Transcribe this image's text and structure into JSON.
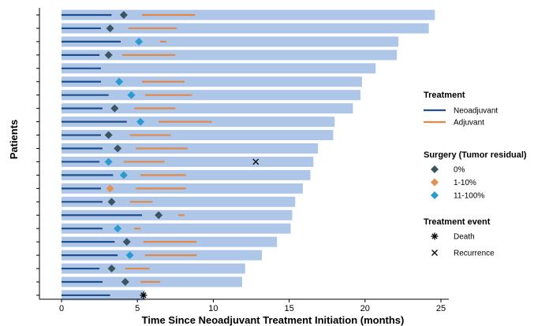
{
  "chart_data": {
    "type": "swimmer",
    "xlabel": "Time Since Neoadjuvant Treatment Initiation (months)",
    "ylabel": "Patients",
    "xlim": [
      -1.5,
      25.5
    ],
    "xticks": [
      0,
      5,
      10,
      15,
      20,
      25
    ],
    "colors": {
      "bar": "#aec7e8",
      "neoadjuvant": "#1f4e8c",
      "adjuvant": "#e0894a",
      "surgery_0": "#3b5560",
      "surgery_1_10": "#e0934f",
      "surgery_11_100": "#2a9ad0"
    },
    "patients": [
      {
        "duration": 24.6,
        "neo": [
          0,
          3.3
        ],
        "adj": [
          5.3,
          8.8
        ],
        "surgery": 4.1,
        "residual": "0%",
        "event": null,
        "event_time": null
      },
      {
        "duration": 24.2,
        "neo": [
          0,
          2.6
        ],
        "adj": [
          4.4,
          7.6
        ],
        "surgery": 3.2,
        "residual": "0%",
        "event": null,
        "event_time": null
      },
      {
        "duration": 22.2,
        "neo": [
          0,
          3.9
        ],
        "adj": [
          6.5,
          6.9
        ],
        "surgery": 5.1,
        "residual": "11-100%",
        "event": null,
        "event_time": null
      },
      {
        "duration": 22.1,
        "neo": [
          0,
          2.5
        ],
        "adj": [
          4.0,
          7.5
        ],
        "surgery": 3.1,
        "residual": "0%",
        "event": null,
        "event_time": null
      },
      {
        "duration": 20.7,
        "neo": [
          0,
          2.6
        ],
        "adj": null,
        "surgery": null,
        "residual": null,
        "event": null,
        "event_time": null
      },
      {
        "duration": 19.8,
        "neo": [
          0,
          2.6
        ],
        "adj": [
          5.3,
          8.1
        ],
        "surgery": 3.8,
        "residual": "11-100%",
        "event": null,
        "event_time": null
      },
      {
        "duration": 19.7,
        "neo": [
          0,
          3.1
        ],
        "adj": [
          5.5,
          8.6
        ],
        "surgery": 4.6,
        "residual": "11-100%",
        "event": null,
        "event_time": null
      },
      {
        "duration": 19.2,
        "neo": [
          0,
          2.7
        ],
        "adj": [
          4.8,
          7.5
        ],
        "surgery": 3.5,
        "residual": "0%",
        "event": null,
        "event_time": null
      },
      {
        "duration": 18.0,
        "neo": [
          0,
          4.3
        ],
        "adj": [
          6.4,
          9.9
        ],
        "surgery": 5.2,
        "residual": "11-100%",
        "event": null,
        "event_time": null
      },
      {
        "duration": 17.9,
        "neo": [
          0,
          2.6
        ],
        "adj": [
          4.5,
          7.2
        ],
        "surgery": 3.1,
        "residual": "0%",
        "event": null,
        "event_time": null
      },
      {
        "duration": 16.9,
        "neo": [
          0,
          2.7
        ],
        "adj": [
          4.9,
          8.3
        ],
        "surgery": 3.7,
        "residual": "0%",
        "event": null,
        "event_time": null
      },
      {
        "duration": 16.6,
        "neo": [
          0,
          2.5
        ],
        "adj": [
          4.1,
          6.8
        ],
        "surgery": 3.1,
        "residual": "11-100%",
        "event": "Recurrence",
        "event_time": 12.8
      },
      {
        "duration": 16.4,
        "neo": [
          0,
          3.4
        ],
        "adj": [
          5.2,
          8.2
        ],
        "surgery": 4.1,
        "residual": "11-100%",
        "event": null,
        "event_time": null
      },
      {
        "duration": 15.9,
        "neo": [
          0,
          2.6
        ],
        "adj": [
          4.9,
          8.2
        ],
        "surgery": 3.2,
        "residual": "1-10%",
        "event": null,
        "event_time": null
      },
      {
        "duration": 15.4,
        "neo": [
          0,
          2.7
        ],
        "adj": [
          4.5,
          6.0
        ],
        "surgery": 3.3,
        "residual": "0%",
        "event": null,
        "event_time": null
      },
      {
        "duration": 15.2,
        "neo": [
          0,
          5.3
        ],
        "adj": [
          7.7,
          8.1
        ],
        "surgery": 6.4,
        "residual": "0%",
        "event": null,
        "event_time": null
      },
      {
        "duration": 15.1,
        "neo": [
          0,
          2.7
        ],
        "adj": [
          4.8,
          5.2
        ],
        "surgery": 3.7,
        "residual": "11-100%",
        "event": null,
        "event_time": null
      },
      {
        "duration": 14.2,
        "neo": [
          0,
          3.5
        ],
        "adj": [
          5.4,
          8.9
        ],
        "surgery": 4.3,
        "residual": "0%",
        "event": null,
        "event_time": null
      },
      {
        "duration": 13.2,
        "neo": [
          0,
          3.7
        ],
        "adj": [
          5.5,
          8.9
        ],
        "surgery": 4.5,
        "residual": "11-100%",
        "event": null,
        "event_time": null
      },
      {
        "duration": 12.1,
        "neo": [
          0,
          2.5
        ],
        "adj": [
          4.2,
          5.8
        ],
        "surgery": 3.3,
        "residual": "0%",
        "event": null,
        "event_time": null
      },
      {
        "duration": 11.9,
        "neo": [
          0,
          2.7
        ],
        "adj": [
          5.2,
          6.5
        ],
        "surgery": 4.2,
        "residual": "0%",
        "event": null,
        "event_time": null
      },
      {
        "duration": 5.5,
        "neo": [
          0,
          3.2
        ],
        "adj": null,
        "surgery": null,
        "residual": null,
        "event": "Death",
        "event_time": 5.4
      }
    ],
    "legend": {
      "treatment": {
        "title": "Treatment",
        "items": [
          {
            "label": "Neoadjuvant",
            "key": "neoadjuvant"
          },
          {
            "label": "Adjuvant",
            "key": "adjuvant"
          }
        ]
      },
      "surgery": {
        "title": "Surgery (Tumor residual)",
        "items": [
          {
            "label": "0%",
            "key": "surgery_0"
          },
          {
            "label": "1-10%",
            "key": "surgery_1_10"
          },
          {
            "label": "11-100%",
            "key": "surgery_11_100"
          }
        ]
      },
      "event": {
        "title": "Treatment event",
        "items": [
          {
            "label": "Death",
            "symbol": "asterisk"
          },
          {
            "label": "Recurrence",
            "symbol": "cross"
          }
        ]
      }
    }
  }
}
